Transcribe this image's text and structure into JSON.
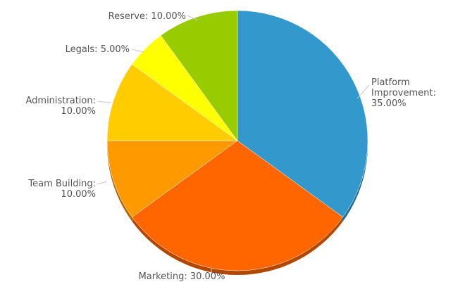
{
  "chart_data": {
    "type": "pie",
    "title": "",
    "slices": [
      {
        "name": "Platform Improvement",
        "value": 35.0,
        "color": "#3399cc",
        "label_lines": [
          "Platform",
          "Improvement:",
          "35.00%"
        ],
        "anchor": "start"
      },
      {
        "name": "Marketing",
        "value": 30.0,
        "color": "#ff6600",
        "label_lines": [
          "Marketing: 30.00%"
        ],
        "anchor": "middle"
      },
      {
        "name": "Team Building",
        "value": 10.0,
        "color": "#ff9900",
        "label_lines": [
          "Team Building:",
          "10.00%"
        ],
        "anchor": "end"
      },
      {
        "name": "Administration",
        "value": 10.0,
        "color": "#ffcc00",
        "label_lines": [
          "Administration:",
          "10.00%"
        ],
        "anchor": "end"
      },
      {
        "name": "Legals",
        "value": 5.0,
        "color": "#ffff00",
        "label_lines": [
          "Legals: 5.00%"
        ],
        "anchor": "end"
      },
      {
        "name": "Reserve",
        "value": 10.0,
        "color": "#99cc00",
        "label_lines": [
          "Reserve: 10.00%"
        ],
        "anchor": "end"
      }
    ],
    "legend": "none",
    "label_style": "outside with leader lines"
  }
}
